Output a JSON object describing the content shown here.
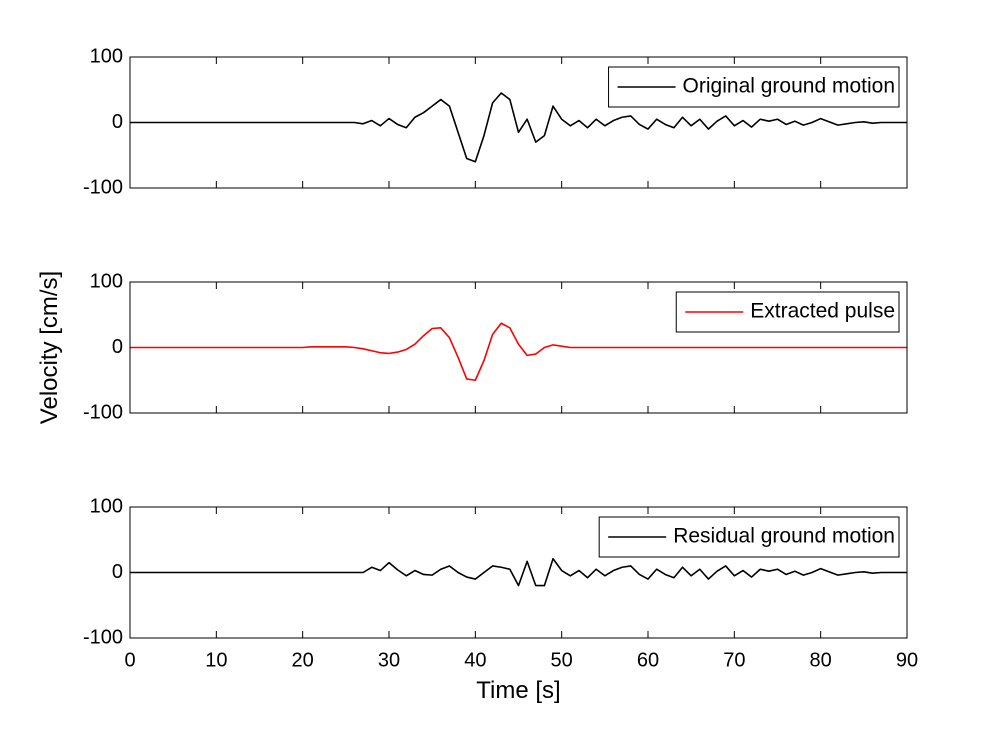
{
  "chart_data": [
    {
      "type": "line",
      "x": [
        0,
        1,
        2,
        3,
        4,
        5,
        6,
        7,
        8,
        9,
        10,
        11,
        12,
        13,
        14,
        15,
        16,
        17,
        18,
        19,
        20,
        21,
        22,
        23,
        24,
        25,
        26,
        27,
        28,
        29,
        30,
        31,
        32,
        33,
        34,
        35,
        36,
        37,
        38,
        39,
        40,
        41,
        42,
        43,
        44,
        45,
        46,
        47,
        48,
        49,
        50,
        51,
        52,
        53,
        54,
        55,
        56,
        57,
        58,
        59,
        60,
        61,
        62,
        63,
        64,
        65,
        66,
        67,
        68,
        69,
        70,
        71,
        72,
        73,
        74,
        75,
        76,
        77,
        78,
        79,
        80,
        81,
        82,
        83,
        84,
        85,
        86,
        87,
        88,
        89,
        90
      ],
      "series": [
        {
          "name": "Original ground motion",
          "color": "#000000",
          "values": [
            0,
            0,
            0,
            0,
            0,
            0,
            0,
            0,
            0,
            0,
            0,
            0,
            0,
            0,
            0,
            0,
            0,
            0,
            0,
            0,
            0,
            0,
            0,
            0,
            0,
            0,
            0,
            -2,
            3,
            -5,
            6,
            -3,
            -8,
            8,
            15,
            25,
            35,
            25,
            -15,
            -55,
            -60,
            -20,
            30,
            45,
            35,
            -15,
            5,
            -30,
            -20,
            25,
            5,
            -5,
            3,
            -8,
            5,
            -5,
            3,
            8,
            10,
            -3,
            -10,
            5,
            -3,
            -8,
            8,
            -5,
            5,
            -10,
            2,
            10,
            -5,
            3,
            -7,
            5,
            2,
            5,
            -3,
            2,
            -4,
            0,
            6,
            1,
            -4,
            -2,
            0,
            1,
            -1,
            0,
            0,
            0,
            0
          ]
        }
      ],
      "xlim": [
        0,
        90
      ],
      "ylim": [
        -100,
        100
      ],
      "yticks": [
        -100,
        0,
        100
      ]
    },
    {
      "type": "line",
      "ylabel": "Velocity [cm/s]",
      "x": [
        0,
        1,
        2,
        3,
        4,
        5,
        6,
        7,
        8,
        9,
        10,
        11,
        12,
        13,
        14,
        15,
        16,
        17,
        18,
        19,
        20,
        21,
        22,
        23,
        24,
        25,
        26,
        27,
        28,
        29,
        30,
        31,
        32,
        33,
        34,
        35,
        36,
        37,
        38,
        39,
        40,
        41,
        42,
        43,
        44,
        45,
        46,
        47,
        48,
        49,
        50,
        51,
        52,
        53,
        54,
        55,
        56,
        57,
        58,
        59,
        60,
        61,
        62,
        63,
        64,
        65,
        66,
        67,
        68,
        69,
        70,
        71,
        72,
        73,
        74,
        75,
        76,
        77,
        78,
        79,
        80,
        81,
        82,
        83,
        84,
        85,
        86,
        87,
        88,
        89,
        90
      ],
      "series": [
        {
          "name": "Extracted pulse",
          "color": "#ff0000",
          "values": [
            0,
            0,
            0,
            0,
            0,
            0,
            0,
            0,
            0,
            0,
            0,
            0,
            0,
            0,
            0,
            0,
            0,
            0,
            0,
            0,
            0,
            1,
            1,
            1,
            1,
            1,
            0,
            -2,
            -5,
            -8,
            -9,
            -7,
            -3,
            5,
            18,
            29,
            30,
            15,
            -15,
            -48,
            -50,
            -20,
            20,
            37,
            30,
            5,
            -12,
            -10,
            0,
            4,
            2,
            0,
            0,
            0,
            0,
            0,
            0,
            0,
            0,
            0,
            0,
            0,
            0,
            0,
            0,
            0,
            0,
            0,
            0,
            0,
            0,
            0,
            0,
            0,
            0,
            0,
            0,
            0,
            0,
            0,
            0,
            0,
            0,
            0,
            0,
            0,
            0,
            0,
            0,
            0,
            0
          ]
        }
      ],
      "xlim": [
        0,
        90
      ],
      "ylim": [
        -100,
        100
      ],
      "yticks": [
        -100,
        0,
        100
      ]
    },
    {
      "type": "line",
      "xlabel": "Time [s]",
      "x": [
        0,
        1,
        2,
        3,
        4,
        5,
        6,
        7,
        8,
        9,
        10,
        11,
        12,
        13,
        14,
        15,
        16,
        17,
        18,
        19,
        20,
        21,
        22,
        23,
        24,
        25,
        26,
        27,
        28,
        29,
        30,
        31,
        32,
        33,
        34,
        35,
        36,
        37,
        38,
        39,
        40,
        41,
        42,
        43,
        44,
        45,
        46,
        47,
        48,
        49,
        50,
        51,
        52,
        53,
        54,
        55,
        56,
        57,
        58,
        59,
        60,
        61,
        62,
        63,
        64,
        65,
        66,
        67,
        68,
        69,
        70,
        71,
        72,
        73,
        74,
        75,
        76,
        77,
        78,
        79,
        80,
        81,
        82,
        83,
        84,
        85,
        86,
        87,
        88,
        89,
        90
      ],
      "series": [
        {
          "name": "Residual ground motion",
          "color": "#000000",
          "values": [
            0,
            0,
            0,
            0,
            0,
            0,
            0,
            0,
            0,
            0,
            0,
            0,
            0,
            0,
            0,
            0,
            0,
            0,
            0,
            0,
            0,
            0,
            0,
            0,
            0,
            0,
            0,
            0,
            8,
            3,
            15,
            4,
            -5,
            3,
            -3,
            -4,
            5,
            10,
            0,
            -7,
            -10,
            0,
            10,
            8,
            5,
            -20,
            17,
            -20,
            -20,
            21,
            3,
            -5,
            3,
            -8,
            5,
            -5,
            3,
            8,
            10,
            -3,
            -10,
            5,
            -3,
            -8,
            8,
            -5,
            5,
            -10,
            2,
            10,
            -5,
            3,
            -7,
            5,
            2,
            5,
            -3,
            2,
            -4,
            0,
            6,
            1,
            -4,
            -2,
            0,
            1,
            -1,
            0,
            0,
            0,
            0
          ]
        }
      ],
      "xlim": [
        0,
        90
      ],
      "ylim": [
        -100,
        100
      ],
      "yticks": [
        -100,
        0,
        100
      ],
      "xticks": [
        0,
        10,
        20,
        30,
        40,
        50,
        60,
        70,
        80,
        90
      ]
    }
  ]
}
